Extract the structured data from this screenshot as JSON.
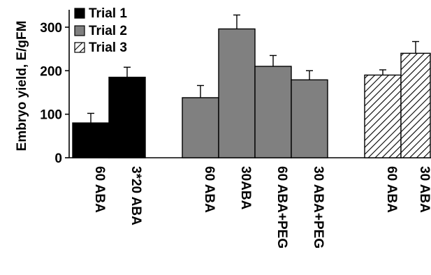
{
  "chart_data": {
    "type": "bar",
    "title": "",
    "xlabel": "",
    "ylabel": "Embryo yield, E/gFM",
    "ylim": [
      0,
      340
    ],
    "yticks": [
      0,
      100,
      200,
      300
    ],
    "grid": false,
    "legend_position": "top-left",
    "series": [
      {
        "name": "Trial 1",
        "fill": "solid",
        "color": "#000000",
        "categories": [
          "60 ABA",
          "3*20 ABA"
        ],
        "values": [
          80,
          185
        ],
        "errors": [
          22,
          23
        ]
      },
      {
        "name": "Trial 2",
        "fill": "solid",
        "color": "#808080",
        "categories": [
          "60 ABA",
          "30ABA",
          "60 ABA+PEG",
          "30 ABA+PEG"
        ],
        "values": [
          138,
          296,
          210,
          179
        ],
        "errors": [
          28,
          32,
          25,
          21
        ]
      },
      {
        "name": "Trial 3",
        "fill": "hatch",
        "color": "#000000",
        "categories": [
          "60 ABA",
          "30 ABA"
        ],
        "values": [
          190,
          240
        ],
        "errors": [
          12,
          27
        ]
      }
    ]
  }
}
